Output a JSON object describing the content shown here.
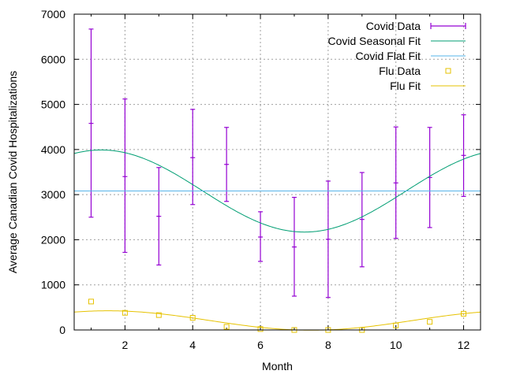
{
  "chart_data": {
    "type": "scatter",
    "title": "",
    "xlabel": "Month",
    "ylabel": "Average Canadian Covid Hospitalizations",
    "xlim": [
      0.5,
      12.5
    ],
    "ylim": [
      0,
      7000
    ],
    "xticks": [
      2,
      4,
      6,
      8,
      10,
      12
    ],
    "yticks": [
      0,
      1000,
      2000,
      3000,
      4000,
      5000,
      6000,
      7000
    ],
    "grid": true,
    "legend_position": "top-right",
    "colors": {
      "covid_data": "#9400d3",
      "covid_seasonal": "#009e73",
      "covid_flat": "#56b4e9",
      "flu": "#e6c200"
    },
    "series": [
      {
        "name": "Covid Data",
        "kind": "errorbar",
        "x": [
          1,
          2,
          3,
          4,
          5,
          6,
          7,
          8,
          9,
          10,
          11,
          12
        ],
        "y": [
          4580,
          3400,
          2520,
          3820,
          3670,
          2060,
          1840,
          2010,
          2450,
          3260,
          3380,
          3870
        ],
        "ylow": [
          2500,
          1720,
          1440,
          2780,
          2850,
          1520,
          750,
          720,
          1400,
          2030,
          2270,
          2960
        ],
        "yhigh": [
          6670,
          5120,
          3600,
          4890,
          4490,
          2620,
          2940,
          3300,
          3490,
          4500,
          4490,
          4770
        ]
      },
      {
        "name": "Covid Seasonal Fit",
        "kind": "curve",
        "formula": "mean + amplitude * cos(2*pi*(x - peak)/12)",
        "mean": 3080,
        "amplitude": 910,
        "peak": 1.3
      },
      {
        "name": "Covid Flat Fit",
        "kind": "hline",
        "y": 3080
      },
      {
        "name": "Flu Data",
        "kind": "points",
        "x": [
          1,
          2,
          3,
          4,
          5,
          6,
          7,
          8,
          9,
          10,
          11,
          12
        ],
        "y": [
          630,
          380,
          330,
          270,
          70,
          20,
          0,
          0,
          0,
          100,
          180,
          360
        ]
      },
      {
        "name": "Flu Fit",
        "kind": "curve",
        "formula": "mean + amplitude * cos(2*pi*(x - peak)/12)",
        "mean": 210,
        "amplitude": 215,
        "peak": 1.5
      }
    ]
  }
}
